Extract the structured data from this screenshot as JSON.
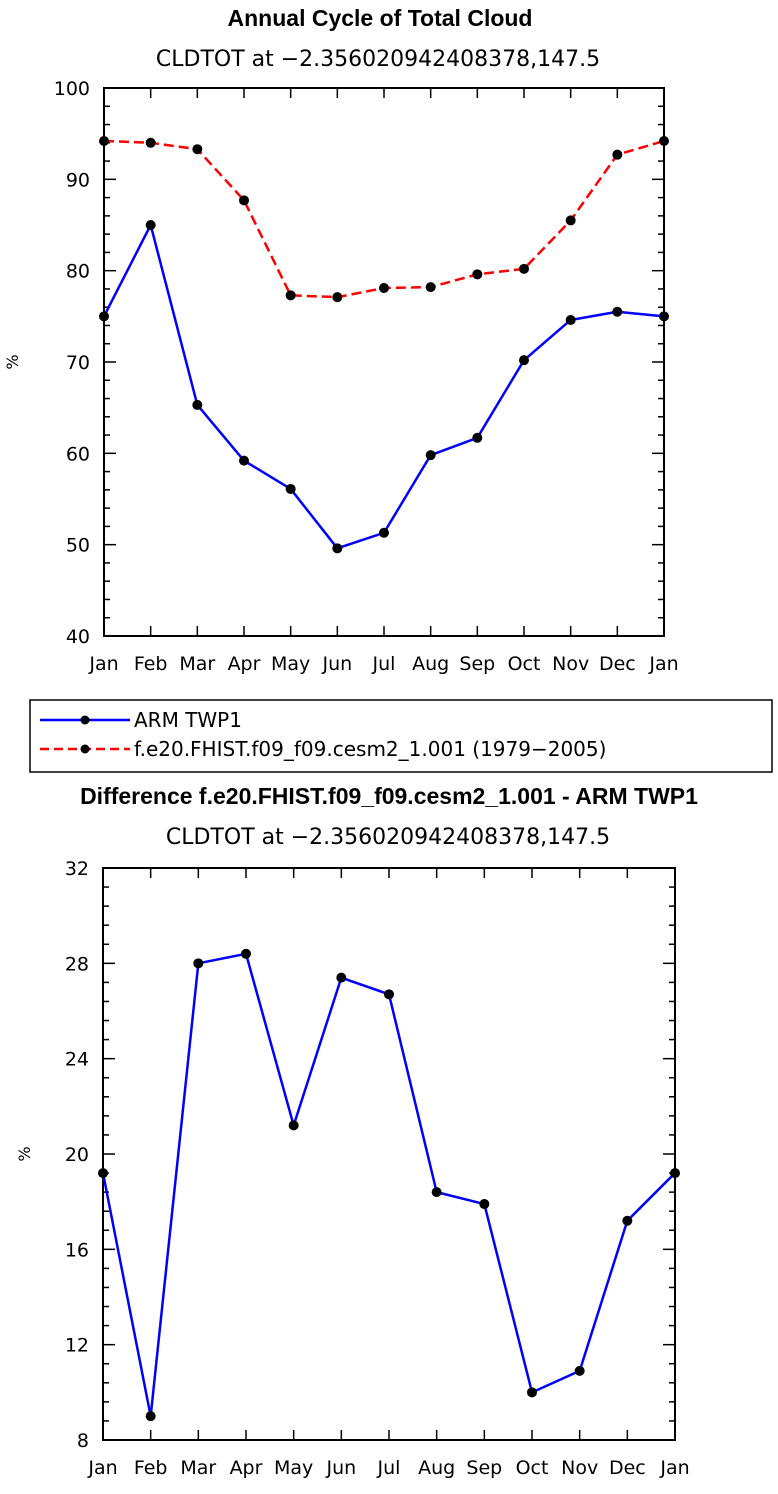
{
  "chart_data": [
    {
      "type": "line",
      "title": "Annual Cycle of Total Cloud",
      "subtitle": "CLDTOT at −2.356020942408378,147.5",
      "xlabel": "",
      "ylabel": "%",
      "categories": [
        "Jan",
        "Feb",
        "Mar",
        "Apr",
        "May",
        "Jun",
        "Jul",
        "Aug",
        "Sep",
        "Oct",
        "Nov",
        "Dec",
        "Jan"
      ],
      "ylim": [
        40,
        100
      ],
      "yticks": [
        "40",
        "50",
        "60",
        "70",
        "80",
        "90",
        "100"
      ],
      "series": [
        {
          "name": "ARM TWP1",
          "color": "#0000ff",
          "dash": "solid",
          "values": [
            75.0,
            85.0,
            65.3,
            59.2,
            56.1,
            49.6,
            51.3,
            59.8,
            61.7,
            70.2,
            74.6,
            75.5,
            75.0
          ]
        },
        {
          "name": "f.e20.FHIST.f09_f09.cesm2_1.001 (1979−2005)",
          "color": "#ff0000",
          "dash": "dashed",
          "values": [
            94.2,
            94.0,
            93.3,
            87.7,
            77.3,
            77.1,
            78.1,
            78.2,
            79.6,
            80.2,
            85.5,
            92.7,
            94.2
          ]
        }
      ],
      "legend": {
        "placement": "below",
        "entries": [
          "ARM TWP1",
          "f.e20.FHIST.f09_f09.cesm2_1.001 (1979−2005)"
        ]
      }
    },
    {
      "type": "line",
      "title": "Difference f.e20.FHIST.f09_f09.cesm2_1.001 - ARM TWP1",
      "subtitle": "CLDTOT at −2.356020942408378,147.5",
      "xlabel": "",
      "ylabel": "%",
      "categories": [
        "Jan",
        "Feb",
        "Mar",
        "Apr",
        "May",
        "Jun",
        "Jul",
        "Aug",
        "Sep",
        "Oct",
        "Nov",
        "Dec",
        "Jan"
      ],
      "ylim": [
        8,
        32
      ],
      "yticks": [
        "8",
        "12",
        "16",
        "20",
        "24",
        "28",
        "32"
      ],
      "series": [
        {
          "name": "difference",
          "color": "#0000ff",
          "dash": "solid",
          "values": [
            19.2,
            9.0,
            28.0,
            28.4,
            21.2,
            27.4,
            26.7,
            18.4,
            17.9,
            10.0,
            10.9,
            17.2,
            19.2
          ]
        }
      ]
    }
  ]
}
